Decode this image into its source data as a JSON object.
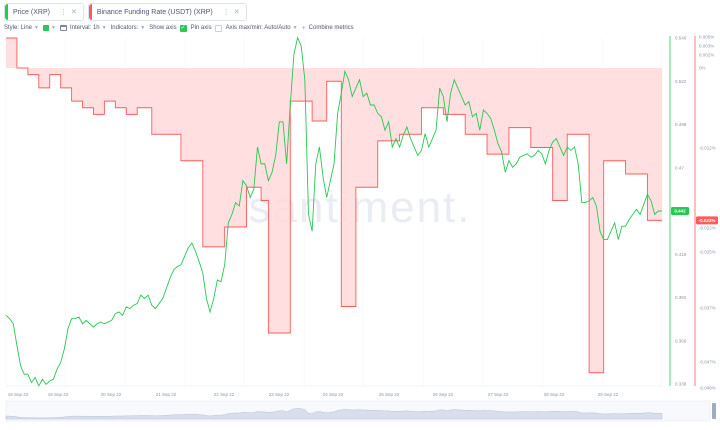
{
  "tabs": [
    {
      "label": "Price (XRP)",
      "color": "#26c953"
    },
    {
      "label": "Binance Funding Rate (USDT) (XRP)",
      "color": "#ff5b5b"
    }
  ],
  "toolbar": {
    "style_label": "Style: Line",
    "interval_label": "Interval: 1h",
    "indicators_label": "Indicators:",
    "show_axis_label": "Show axis",
    "pin_axis_label": "Pin axis",
    "axis_minmax_label": "Axis max/min: Auto/Auto",
    "combine_label": "Combine metrics"
  },
  "watermark": "santiment.",
  "chart_data": {
    "type": "line",
    "x_ticks": [
      "19 Sep 22",
      "19 Sep 22",
      "20 Sep 22",
      "21 Sep 22",
      "22 Sep 22",
      "23 Sep 22",
      "24 Sep 22",
      "25 Sep 22",
      "26 Sep 22",
      "27 Sep 22",
      "28 Sep 22",
      "29 Sep 22"
    ],
    "price_axis": {
      "ticks": [
        "0.546",
        "0.522",
        "0.498",
        "0.47",
        "0.446",
        "0.418",
        "0.392",
        "0.366",
        "0.338"
      ],
      "min": 0.338,
      "max": 0.546,
      "current_label": "0.442"
    },
    "funding_axis": {
      "ticks": [
        "0.005%",
        "0.003%",
        "0.002%",
        "0%",
        "-0.012%",
        "-0.022%",
        "-0.025%",
        "-0.037%",
        "-0.047%",
        "-0.048%"
      ],
      "min": -0.048,
      "max": 0.005,
      "current_label": "-0.023%"
    },
    "series": [
      {
        "name": "Price (XRP)",
        "color": "#26c953",
        "values": [
          0.38,
          0.378,
          0.375,
          0.362,
          0.35,
          0.345,
          0.345,
          0.34,
          0.343,
          0.338,
          0.342,
          0.339,
          0.341,
          0.342,
          0.348,
          0.352,
          0.36,
          0.372,
          0.378,
          0.378,
          0.379,
          0.375,
          0.377,
          0.375,
          0.373,
          0.375,
          0.376,
          0.375,
          0.376,
          0.377,
          0.381,
          0.382,
          0.38,
          0.385,
          0.384,
          0.386,
          0.387,
          0.392,
          0.39,
          0.392,
          0.386,
          0.384,
          0.387,
          0.39,
          0.396,
          0.402,
          0.407,
          0.409,
          0.41,
          0.415,
          0.42,
          0.423,
          0.418,
          0.412,
          0.405,
          0.39,
          0.382,
          0.39,
          0.401,
          0.4,
          0.41,
          0.435,
          0.44,
          0.447,
          0.445,
          0.46,
          0.457,
          0.45,
          0.455,
          0.48,
          0.47,
          0.47,
          0.46,
          0.465,
          0.475,
          0.495,
          0.495,
          0.47,
          0.505,
          0.535,
          0.545,
          0.54,
          0.52,
          0.44,
          0.43,
          0.47,
          0.48,
          0.462,
          0.45,
          0.46,
          0.47,
          0.5,
          0.512,
          0.525,
          0.52,
          0.51,
          0.515,
          0.52,
          0.51,
          0.512,
          0.505,
          0.505,
          0.5,
          0.498,
          0.49,
          0.495,
          0.48,
          0.485,
          0.48,
          0.487,
          0.492,
          0.485,
          0.48,
          0.475,
          0.478,
          0.488,
          0.48,
          0.485,
          0.49,
          0.515,
          0.51,
          0.495,
          0.512,
          0.52,
          0.515,
          0.51,
          0.505,
          0.507,
          0.498,
          0.5,
          0.49,
          0.502,
          0.5,
          0.497,
          0.49,
          0.482,
          0.477,
          0.465,
          0.472,
          0.468,
          0.47,
          0.474,
          0.475,
          0.476,
          0.474,
          0.475,
          0.478,
          0.476,
          0.47,
          0.478,
          0.483,
          0.485,
          0.48,
          0.475,
          0.48,
          0.478,
          0.48,
          0.47,
          0.447,
          0.447,
          0.448,
          0.45,
          0.445,
          0.43,
          0.425,
          0.425,
          0.43,
          0.435,
          0.425,
          0.433,
          0.433,
          0.437,
          0.44,
          0.443,
          0.44,
          0.446,
          0.452,
          0.448,
          0.44,
          0.442,
          0.442
        ]
      },
      {
        "name": "Binance Funding Rate (USDT) (XRP)",
        "color": "#ff5b5b",
        "steps": [
          [
            0,
            0.005
          ],
          [
            3,
            0.0
          ],
          [
            6,
            -0.001
          ],
          [
            9,
            -0.003
          ],
          [
            12,
            -0.001
          ],
          [
            15,
            -0.003
          ],
          [
            18,
            -0.005
          ],
          [
            21,
            -0.006
          ],
          [
            24,
            -0.007
          ],
          [
            27,
            -0.005
          ],
          [
            30,
            -0.006
          ],
          [
            33,
            -0.007
          ],
          [
            36,
            -0.006
          ],
          [
            40,
            -0.01
          ],
          [
            48,
            -0.014
          ],
          [
            54,
            -0.027
          ],
          [
            60,
            -0.024
          ],
          [
            66,
            -0.018
          ],
          [
            70,
            -0.02
          ],
          [
            72,
            -0.04
          ],
          [
            78,
            -0.005
          ],
          [
            84,
            -0.008
          ],
          [
            88,
            -0.002
          ],
          [
            92,
            -0.036
          ],
          [
            96,
            -0.018
          ],
          [
            102,
            -0.011
          ],
          [
            108,
            -0.01
          ],
          [
            114,
            -0.006
          ],
          [
            120,
            -0.007
          ],
          [
            126,
            -0.01
          ],
          [
            132,
            -0.013
          ],
          [
            138,
            -0.009
          ],
          [
            144,
            -0.012
          ],
          [
            150,
            -0.02
          ],
          [
            154,
            -0.01
          ],
          [
            160,
            -0.046
          ],
          [
            164,
            -0.014
          ],
          [
            170,
            -0.016
          ],
          [
            176,
            -0.023
          ]
        ]
      }
    ]
  }
}
